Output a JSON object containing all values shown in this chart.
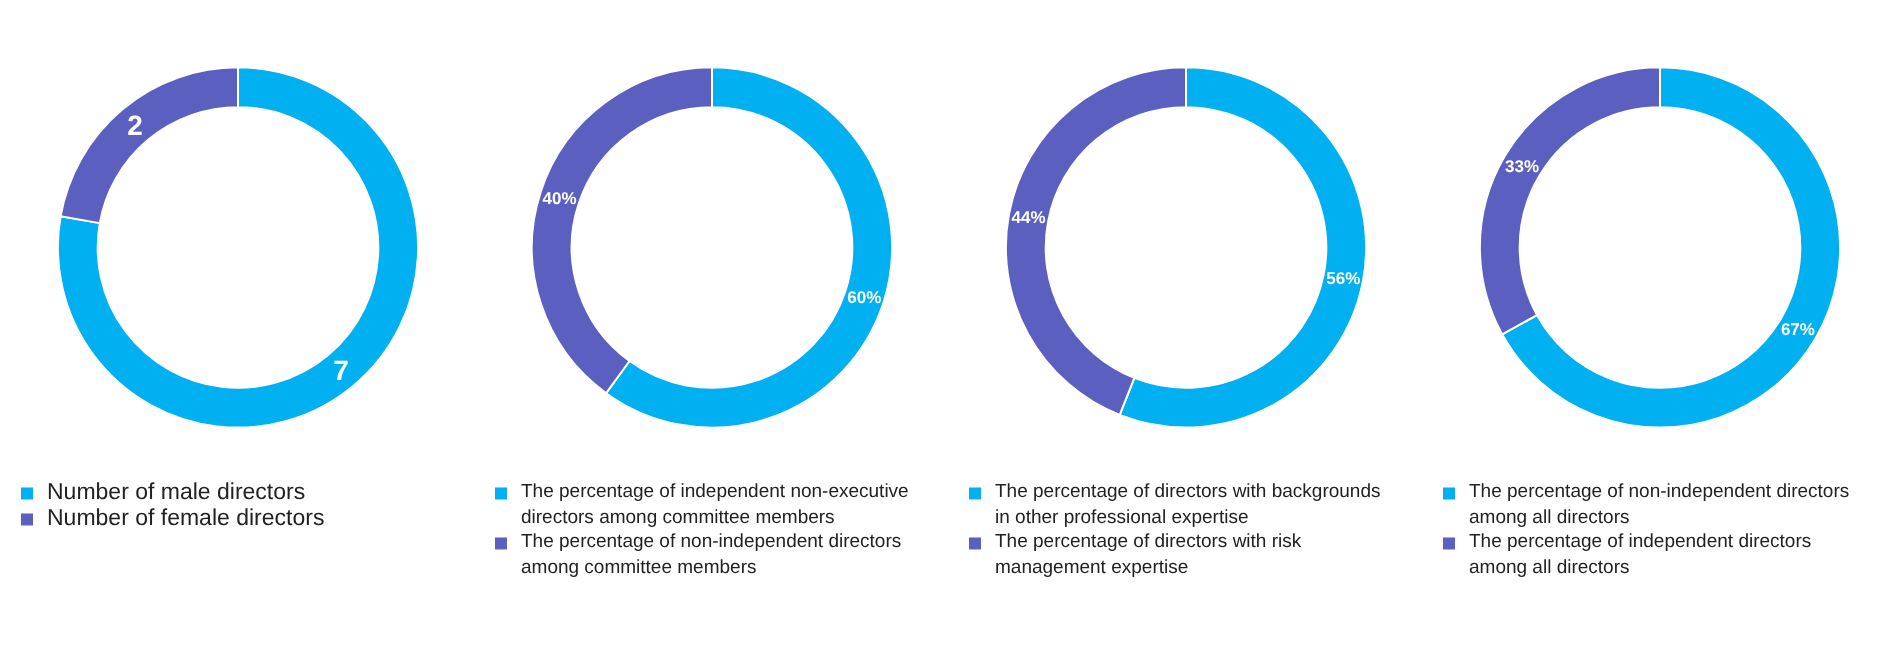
{
  "chart_data": [
    {
      "type": "donut",
      "categories": [
        "Number of male directors",
        "Number of female directors"
      ],
      "values": [
        7,
        2
      ],
      "colors": [
        "#00b0f0",
        "#5b5fbf"
      ],
      "value_labels": [
        "7",
        "2"
      ],
      "legend": "bottom"
    },
    {
      "type": "donut",
      "categories": [
        "The percentage of independent non-executive directors among committee members",
        "The percentage of non-independent directors among committee members"
      ],
      "values": [
        60,
        40
      ],
      "colors": [
        "#00b0f0",
        "#5b5fbf"
      ],
      "value_labels": [
        "60%",
        "40%"
      ],
      "legend": "bottom"
    },
    {
      "type": "donut",
      "categories": [
        "The percentage of directors with backgrounds in other professional expertise",
        "The percentage of directors with risk management expertise"
      ],
      "values": [
        56,
        44
      ],
      "colors": [
        "#00b0f0",
        "#5b5fbf"
      ],
      "value_labels": [
        "56%",
        "44%"
      ],
      "legend": "bottom"
    },
    {
      "type": "donut",
      "categories": [
        "The percentage of non-independent directors among all directors",
        "The percentage of independent directors among all directors"
      ],
      "values": [
        67,
        33
      ],
      "colors": [
        "#00b0f0",
        "#5b5fbf"
      ],
      "value_labels": [
        "67%",
        "33%"
      ],
      "legend": "bottom"
    }
  ]
}
